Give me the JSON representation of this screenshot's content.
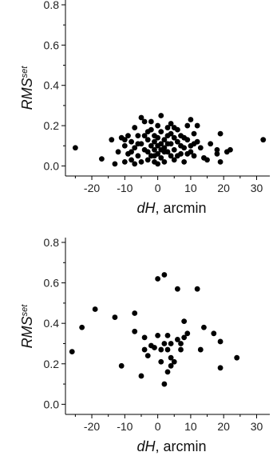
{
  "chart_data": [
    {
      "type": "scatter",
      "xlabel_main": "dH",
      "xlabel_unit": ", arcmin",
      "ylabel_main": "RMS",
      "ylabel_sup": "set",
      "xlim": [
        -28,
        34
      ],
      "ylim": [
        -0.05,
        0.8
      ],
      "xticks": [
        -20,
        -10,
        0,
        10,
        20,
        30
      ],
      "yticks": [
        0.0,
        0.2,
        0.4,
        0.6,
        0.8
      ],
      "ytick_labels": [
        "0.0",
        "0.2",
        "0.4",
        "0.6",
        "0.8"
      ],
      "marker_color": "#000000",
      "points": [
        [
          -25,
          0.09
        ],
        [
          -17,
          0.035
        ],
        [
          -14,
          0.13
        ],
        [
          -13,
          0.01
        ],
        [
          -12,
          0.07
        ],
        [
          -11,
          0.14
        ],
        [
          -10,
          0.02
        ],
        [
          -10,
          0.1
        ],
        [
          -9,
          0.15
        ],
        [
          -9,
          0.06
        ],
        [
          -8,
          0.12
        ],
        [
          -8,
          0.03
        ],
        [
          -7,
          0.09
        ],
        [
          -7,
          0.19
        ],
        [
          -6,
          0.15
        ],
        [
          -6,
          0.05
        ],
        [
          -5,
          0.11
        ],
        [
          -5,
          0.24
        ],
        [
          -4,
          0.22
        ],
        [
          -4,
          0.08
        ],
        [
          -4,
          0.15
        ],
        [
          -3,
          0.13
        ],
        [
          -3,
          0.03
        ],
        [
          -3,
          0.07
        ],
        [
          -2,
          0.1
        ],
        [
          -2,
          0.18
        ],
        [
          -2,
          0.05
        ],
        [
          -1,
          0.12
        ],
        [
          -1,
          0.08
        ],
        [
          -1,
          0.15
        ],
        [
          -1,
          0.02
        ],
        [
          0,
          0.1
        ],
        [
          0,
          0.06
        ],
        [
          0,
          0.14
        ],
        [
          0,
          0.2
        ],
        [
          1,
          0.11
        ],
        [
          1,
          0.04
        ],
        [
          1,
          0.17
        ],
        [
          1,
          0.25
        ],
        [
          2,
          0.09
        ],
        [
          2,
          0.13
        ],
        [
          2,
          0.02
        ],
        [
          3,
          0.07
        ],
        [
          3,
          0.15
        ],
        [
          3,
          0.19
        ],
        [
          4,
          0.05
        ],
        [
          4,
          0.11
        ],
        [
          4,
          0.21
        ],
        [
          5,
          0.08
        ],
        [
          5,
          0.14
        ],
        [
          5,
          0.03
        ],
        [
          6,
          0.12
        ],
        [
          6,
          0.18
        ],
        [
          7,
          0.06
        ],
        [
          7,
          0.1
        ],
        [
          7,
          0.15
        ],
        [
          8,
          0.09
        ],
        [
          8,
          0.02
        ],
        [
          9,
          0.13
        ],
        [
          9,
          0.2
        ],
        [
          10,
          0.07
        ],
        [
          10,
          0.1
        ],
        [
          10,
          0.23
        ],
        [
          11,
          0.16
        ],
        [
          11,
          0.05
        ],
        [
          12,
          0.12
        ],
        [
          12,
          0.2
        ],
        [
          13,
          0.09
        ],
        [
          14,
          0.04
        ],
        [
          15,
          0.03
        ],
        [
          16,
          0.11
        ],
        [
          18,
          0.06
        ],
        [
          18,
          0.08
        ],
        [
          19,
          0.02
        ],
        [
          19,
          0.16
        ],
        [
          21,
          0.07
        ],
        [
          22,
          0.08
        ],
        [
          32,
          0.13
        ],
        [
          -10,
          0.13
        ],
        [
          -7,
          0.01
        ],
        [
          -2,
          0.22
        ],
        [
          2,
          0.07
        ],
        [
          6,
          0.05
        ],
        [
          8,
          0.14
        ],
        [
          -6,
          0.11
        ],
        [
          3,
          0.11
        ],
        [
          -1,
          0.05
        ],
        [
          1,
          0.08
        ],
        [
          4,
          0.16
        ],
        [
          -3,
          0.17
        ],
        [
          9,
          0.06
        ],
        [
          -8,
          0.07
        ],
        [
          0,
          0.01
        ],
        [
          5,
          0.19
        ],
        [
          11,
          0.11
        ],
        [
          -5,
          0.02
        ]
      ]
    },
    {
      "type": "scatter",
      "xlabel_main": "dH",
      "xlabel_unit": ", arcmin",
      "ylabel_main": "RMS",
      "ylabel_sup": "set",
      "xlim": [
        -28,
        34
      ],
      "ylim": [
        -0.05,
        0.8
      ],
      "xticks": [
        -20,
        -10,
        0,
        10,
        20,
        30
      ],
      "yticks": [
        0.0,
        0.2,
        0.4,
        0.6,
        0.8
      ],
      "ytick_labels": [
        "0.0",
        "0.2",
        "0.4",
        "0.6",
        "0.8"
      ],
      "marker_color": "#000000",
      "points": [
        [
          -26,
          0.26
        ],
        [
          -23,
          0.38
        ],
        [
          -19,
          0.47
        ],
        [
          -13,
          0.43
        ],
        [
          -11,
          0.19
        ],
        [
          -7,
          0.45
        ],
        [
          -7,
          0.36
        ],
        [
          -5,
          0.14
        ],
        [
          -4,
          0.27
        ],
        [
          -4,
          0.33
        ],
        [
          -3,
          0.24
        ],
        [
          -1,
          0.28
        ],
        [
          0,
          0.34
        ],
        [
          0,
          0.62
        ],
        [
          1,
          0.27
        ],
        [
          1,
          0.21
        ],
        [
          2,
          0.1
        ],
        [
          2,
          0.3
        ],
        [
          2,
          0.64
        ],
        [
          3,
          0.27
        ],
        [
          3,
          0.16
        ],
        [
          4,
          0.23
        ],
        [
          4,
          0.19
        ],
        [
          4,
          0.3
        ],
        [
          5,
          0.21
        ],
        [
          6,
          0.57
        ],
        [
          6,
          0.32
        ],
        [
          7,
          0.27
        ],
        [
          8,
          0.33
        ],
        [
          8,
          0.41
        ],
        [
          9,
          0.35
        ],
        [
          12,
          0.57
        ],
        [
          13,
          0.27
        ],
        [
          14,
          0.38
        ],
        [
          17,
          0.35
        ],
        [
          19,
          0.31
        ],
        [
          19,
          0.18
        ],
        [
          24,
          0.23
        ],
        [
          -2,
          0.29
        ],
        [
          3,
          0.34
        ],
        [
          7,
          0.3
        ]
      ]
    }
  ]
}
